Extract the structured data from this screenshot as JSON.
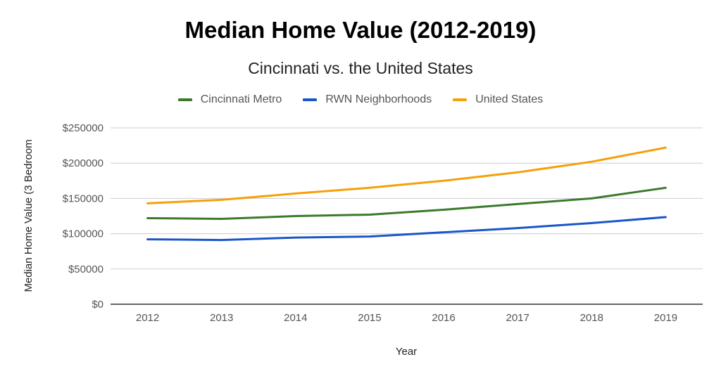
{
  "chart_data": {
    "type": "line",
    "title": "Median Home Value (2012-2019)",
    "subtitle": "Cincinnati vs. the United States",
    "xlabel": "Year",
    "ylabel": "Median Home Value (3 Bedroom",
    "categories": [
      "2012",
      "2013",
      "2014",
      "2015",
      "2016",
      "2017",
      "2018",
      "2019"
    ],
    "ylim": [
      0,
      250000
    ],
    "yticks": [
      0,
      50000,
      100000,
      150000,
      200000,
      250000
    ],
    "ytick_labels": [
      "$0",
      "$50000",
      "$100000",
      "$150000",
      "$200000",
      "$250000"
    ],
    "legend_position": "top-center",
    "series": [
      {
        "name": "Cincinnati Metro",
        "color": "#3c7a2b",
        "values": [
          122000,
          121000,
          125000,
          127000,
          134000,
          142000,
          150000,
          165000
        ]
      },
      {
        "name": "RWN Neighborhoods",
        "color": "#1a56c8",
        "values": [
          92000,
          91000,
          94500,
          96000,
          102000,
          108000,
          115000,
          123500
        ]
      },
      {
        "name": "United States",
        "color": "#f5a00a",
        "values": [
          143000,
          148000,
          157000,
          165000,
          175000,
          187000,
          202000,
          222000
        ]
      }
    ]
  }
}
